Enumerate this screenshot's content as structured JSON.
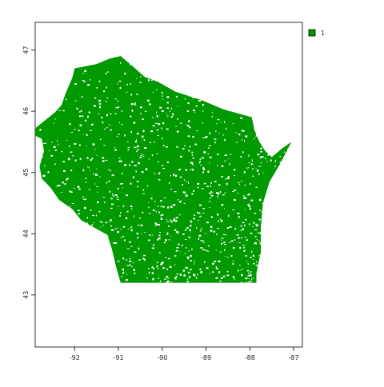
{
  "map": {
    "type": "raster",
    "fill_color": "#009900",
    "x_ticks": [
      "-92",
      "-91",
      "-90",
      "-89",
      "-88",
      "-87"
    ],
    "x_tick_values": [
      -92,
      -91,
      -90,
      -89,
      -88,
      -87
    ],
    "y_ticks": [
      "43",
      "44",
      "45",
      "46",
      "47"
    ],
    "y_tick_values": [
      43,
      44,
      45,
      46,
      47
    ],
    "xlim": [
      -92.9,
      -86.8
    ],
    "ylim": [
      42.15,
      47.45
    ]
  },
  "legend": {
    "label": "1",
    "color": "#009900",
    "position": "top-right"
  }
}
